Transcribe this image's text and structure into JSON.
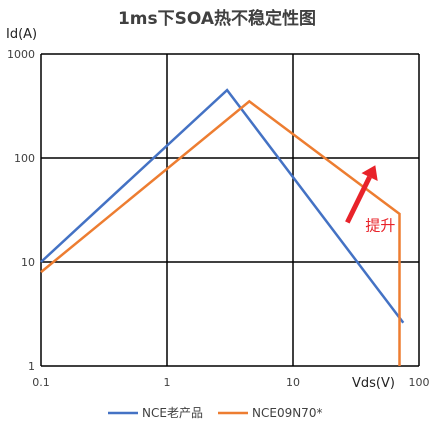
{
  "chart_data": {
    "type": "line",
    "title": "1ms下SOA热不稳定性图",
    "xlabel": "Vds(V)",
    "ylabel": "Id(A)",
    "x_scale": "log",
    "y_scale": "log",
    "xlim": [
      0.1,
      100
    ],
    "ylim": [
      1,
      1000
    ],
    "x_ticks": [
      "0.1",
      "1",
      "10",
      "100"
    ],
    "y_ticks": [
      "1",
      "10",
      "100",
      "1000"
    ],
    "grid": true,
    "legend_position": "bottom",
    "series": [
      {
        "name": "NCE老产品",
        "color": "#4472C4",
        "points": [
          [
            0.1,
            10
          ],
          [
            3,
            450
          ],
          [
            75,
            2.6
          ]
        ]
      },
      {
        "name": "NCE09N70*",
        "color": "#ED7D31",
        "points": [
          [
            0.1,
            8
          ],
          [
            4.5,
            350
          ],
          [
            70,
            29
          ],
          [
            70,
            1
          ]
        ]
      }
    ],
    "annotation": {
      "text": "提升",
      "color": "#E8232A",
      "arrow_from": [
        27,
        24
      ],
      "arrow_to": [
        45,
        85
      ]
    }
  }
}
